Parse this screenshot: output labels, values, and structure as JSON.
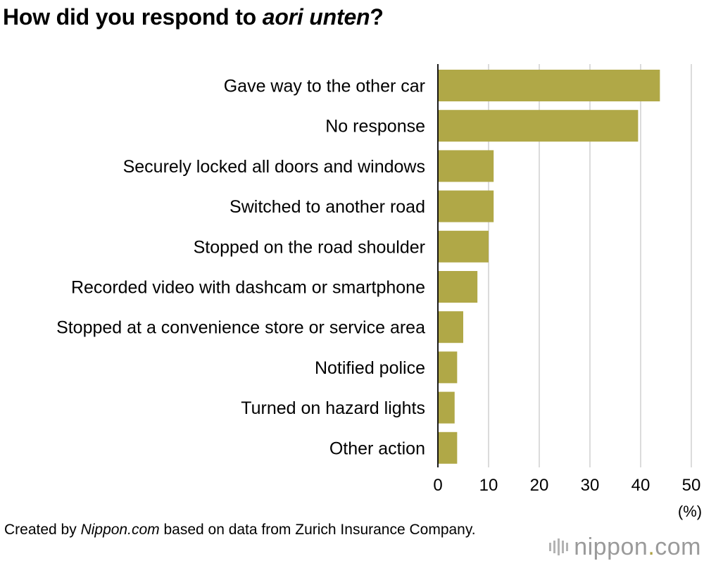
{
  "title": {
    "prefix": "How did you respond to ",
    "italic": "aori unten",
    "suffix": "?"
  },
  "chart_data": {
    "type": "bar",
    "orientation": "horizontal",
    "categories": [
      "Gave way to the other car",
      "No response",
      "Securely locked all doors and windows",
      "Switched to another road",
      "Stopped on the road shoulder",
      "Recorded video with dashcam or smartphone",
      "Stopped at a convenience store or service area",
      "Notified police",
      "Turned on hazard lights",
      "Other action"
    ],
    "values": [
      43.8,
      39.5,
      11.0,
      11.0,
      10.0,
      7.8,
      5.0,
      3.8,
      3.3,
      3.8
    ],
    "xlim": [
      0,
      50
    ],
    "xticks": [
      0,
      10,
      20,
      30,
      40,
      50
    ],
    "unit_label": "(%)",
    "bar_color": "#b0a847",
    "grid": true,
    "grid_color": "#c8c8c8"
  },
  "source": {
    "prefix": "Created by ",
    "italic": "Nippon.com",
    "suffix": " based on data from Zurich Insurance Company."
  },
  "logo": {
    "name": "nippon",
    "dot": ".",
    "suffix": "com",
    "accent_color": "#b0a347"
  }
}
